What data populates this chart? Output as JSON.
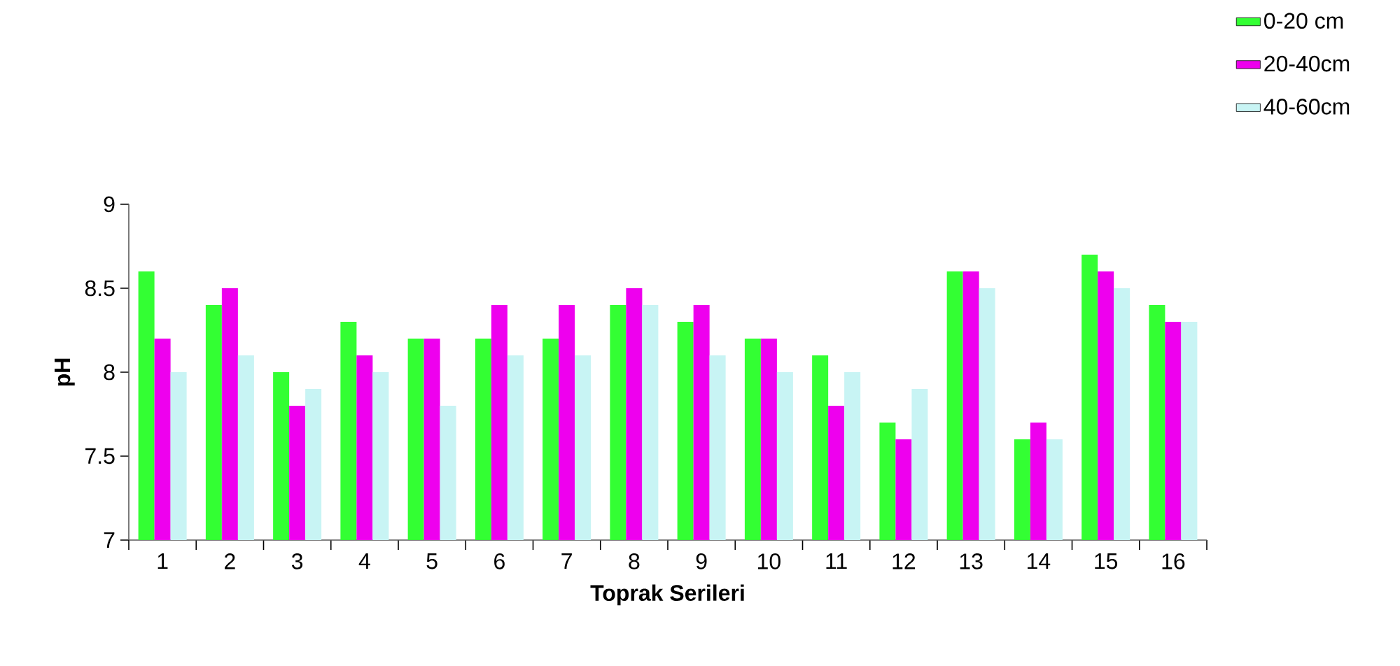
{
  "chart_data": {
    "type": "bar",
    "xlabel": "Toprak Serileri",
    "ylabel": "pH",
    "categories": [
      "1",
      "2",
      "3",
      "4",
      "5",
      "6",
      "7",
      "8",
      "9",
      "10",
      "11",
      "12",
      "13",
      "14",
      "15",
      "16"
    ],
    "series": [
      {
        "name": "0-20 cm",
        "color": "#33ff33",
        "values": [
          8.6,
          8.4,
          8.0,
          8.3,
          8.2,
          8.2,
          8.2,
          8.4,
          8.3,
          8.2,
          8.1,
          7.7,
          8.6,
          7.6,
          8.7,
          8.4
        ]
      },
      {
        "name": "20-40cm",
        "color": "#ee00ee",
        "values": [
          8.2,
          8.5,
          7.8,
          8.1,
          8.2,
          8.4,
          8.4,
          8.5,
          8.4,
          8.2,
          7.8,
          7.6,
          8.6,
          7.7,
          8.6,
          8.3
        ]
      },
      {
        "name": "40-60cm",
        "color": "#c8f4f4",
        "values": [
          8.0,
          8.1,
          7.9,
          8.0,
          7.8,
          8.1,
          8.1,
          8.4,
          8.1,
          8.0,
          8.0,
          7.9,
          8.5,
          7.6,
          8.5,
          8.3
        ]
      }
    ],
    "ylim": [
      7,
      9
    ],
    "yticks": [
      7,
      7.5,
      8,
      8.5,
      9
    ],
    "legend": "top right"
  }
}
